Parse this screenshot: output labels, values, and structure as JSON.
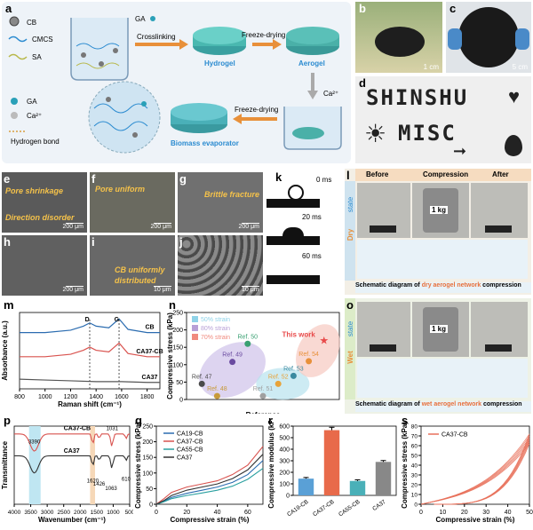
{
  "panels": {
    "a": {
      "label": "a",
      "legend": {
        "cb": "CB",
        "cmcs": "CMCS",
        "sa": "SA",
        "ga": "GA",
        "ca": "Ca²⁺",
        "hbond": "Hydrogen bond"
      },
      "ga_top": "GA",
      "steps": {
        "crosslinking": "Crosslinking",
        "freeze_drying_1": "Freeze-drying",
        "freeze_drying_2": "Freeze-drying",
        "ca_label": "Ca²⁺"
      },
      "products": {
        "hydrogel": "Hydrogel",
        "aerogel": "Aerogel",
        "biomass": "Biomass evaporator"
      }
    },
    "b": {
      "label": "b",
      "scale": "1 cm"
    },
    "c": {
      "label": "c",
      "scale": "5 cm"
    },
    "d": {
      "label": "d",
      "word1": "SHINSHU",
      "word2": "MISC"
    },
    "e": {
      "label": "e",
      "t1": "Pore shrinkage",
      "t2": "Direction disorder",
      "scale": "200 μm"
    },
    "f": {
      "label": "f",
      "t1": "Pore uniform",
      "scale": "200 μm"
    },
    "g": {
      "label": "g",
      "t1": "Brittle fracture",
      "scale": "200 μm"
    },
    "h": {
      "label": "h",
      "scale": "200 μm"
    },
    "i": {
      "label": "i",
      "t1": "CB uniformly",
      "t2": "distributed",
      "scale": "10 μm"
    },
    "j": {
      "label": "j",
      "scale": "10 μm"
    },
    "k": {
      "label": "k",
      "times": [
        "0 ms",
        "20 ms",
        "60 ms"
      ]
    },
    "l": {
      "label": "l",
      "headers": [
        "Before",
        "Compression",
        "After"
      ],
      "state_word": "Dry",
      "state_suffix": "state",
      "weight": "1 kg",
      "caption_pre": "Schematic diagram of ",
      "caption_em": "dry aerogel network",
      "caption_post": " compression"
    },
    "o": {
      "label": "o",
      "state_word": "Wet",
      "state_suffix": "state",
      "weight": "1 kg",
      "caption_pre": "Schematic diagram of ",
      "caption_em": "wet aerogel network",
      "caption_post": " compression"
    },
    "m": {
      "label": "m"
    },
    "n": {
      "label": "n"
    },
    "p": {
      "label": "p"
    },
    "q": {
      "label": "q"
    },
    "r": {
      "label": "r"
    },
    "s": {
      "label": "s"
    }
  },
  "chart_data": [
    {
      "id": "m",
      "type": "line",
      "xlabel": "Raman shift (cm⁻¹)",
      "ylabel": "Absorbance (a.u.)",
      "xlim": [
        800,
        1900
      ],
      "xticks": [
        800,
        1000,
        1200,
        1400,
        1600,
        1800
      ],
      "annotations": [
        "D",
        "G"
      ],
      "series": [
        {
          "name": "CB",
          "color": "#2b6cb0",
          "x": [
            800,
            1000,
            1200,
            1300,
            1350,
            1400,
            1500,
            1580,
            1650,
            1800,
            1900
          ],
          "y": [
            0.8,
            0.8,
            0.83,
            0.88,
            0.92,
            0.88,
            0.86,
            0.97,
            0.84,
            0.8,
            0.8
          ]
        },
        {
          "name": "CA37-CB",
          "color": "#d9534f",
          "x": [
            800,
            1000,
            1200,
            1300,
            1350,
            1400,
            1500,
            1580,
            1650,
            1800,
            1900
          ],
          "y": [
            0.5,
            0.5,
            0.53,
            0.58,
            0.62,
            0.58,
            0.56,
            0.67,
            0.54,
            0.5,
            0.5
          ]
        },
        {
          "name": "CA37",
          "color": "#555555",
          "x": [
            800,
            1000,
            1200,
            1400,
            1600,
            1800,
            1900
          ],
          "y": [
            0.22,
            0.21,
            0.2,
            0.19,
            0.19,
            0.18,
            0.18
          ]
        }
      ]
    },
    {
      "id": "n",
      "type": "scatter",
      "xlabel": "Reference",
      "ylabel": "Compressive stress (kPa)",
      "ylim": [
        0,
        250
      ],
      "yticks": [
        0,
        50,
        100,
        150,
        200,
        250
      ],
      "legend": [
        "50% strain",
        "80% strain",
        "70% strain"
      ],
      "legend_colors": [
        "#8fd3e8",
        "#b79fd6",
        "#f08a7e"
      ],
      "points": [
        {
          "name": "Ref. 47",
          "x": 1,
          "y": 45,
          "color": "#4a4a4a"
        },
        {
          "name": "Ref. 48",
          "x": 2,
          "y": 10,
          "color": "#c79a3a"
        },
        {
          "name": "Ref. 49",
          "x": 3,
          "y": 108,
          "color": "#6a4ba0"
        },
        {
          "name": "Ref. 50",
          "x": 4,
          "y": 160,
          "color": "#3aa072"
        },
        {
          "name": "Ref. 51",
          "x": 5,
          "y": 10,
          "color": "#a0a0a0"
        },
        {
          "name": "Ref. 52",
          "x": 6,
          "y": 45,
          "color": "#e8a33a"
        },
        {
          "name": "Ref. 53",
          "x": 7,
          "y": 68,
          "color": "#3a8aa0"
        },
        {
          "name": "Ref. 54",
          "x": 8,
          "y": 110,
          "color": "#e8903a"
        },
        {
          "name": "This work",
          "x": 9,
          "y": 170,
          "color": "#e84a4a",
          "marker": "star"
        }
      ]
    },
    {
      "id": "p",
      "type": "line",
      "xlabel": "Wavenumber (cm⁻¹)",
      "ylabel": "Transmittance",
      "xlim": [
        4000,
        500
      ],
      "xticks": [
        4000,
        3500,
        3000,
        2500,
        2000,
        1500,
        1000,
        500
      ],
      "annotations": [
        "3390",
        "1620",
        "1426",
        "1063",
        "1031",
        "610"
      ],
      "series": [
        {
          "name": "CA37-CB",
          "color": "#d9534f"
        },
        {
          "name": "CA37",
          "color": "#333333"
        }
      ]
    },
    {
      "id": "q",
      "type": "line",
      "xlabel": "Compressive strain (%)",
      "ylabel": "Compressive stress (kPa)",
      "xlim": [
        0,
        70
      ],
      "ylim": [
        0,
        250
      ],
      "xticks": [
        0,
        20,
        40,
        60
      ],
      "yticks": [
        0,
        50,
        100,
        150,
        200,
        250
      ],
      "series": [
        {
          "name": "CA19-CB",
          "color": "#2b6cb0",
          "x": [
            0,
            5,
            10,
            20,
            30,
            40,
            50,
            60,
            70
          ],
          "y": [
            0,
            10,
            22,
            35,
            45,
            55,
            70,
            95,
            140
          ]
        },
        {
          "name": "CA37-CB",
          "color": "#d9534f",
          "x": [
            0,
            5,
            10,
            20,
            30,
            40,
            50,
            60,
            70
          ],
          "y": [
            0,
            18,
            38,
            55,
            65,
            75,
            95,
            125,
            185
          ]
        },
        {
          "name": "CA55-CB",
          "color": "#2aa0a0",
          "x": [
            0,
            5,
            10,
            20,
            30,
            40,
            50,
            60,
            70
          ],
          "y": [
            0,
            8,
            18,
            28,
            36,
            45,
            58,
            80,
            115
          ]
        },
        {
          "name": "CA37",
          "color": "#333333",
          "x": [
            0,
            5,
            10,
            20,
            30,
            40,
            50,
            60,
            70
          ],
          "y": [
            0,
            12,
            28,
            45,
            55,
            65,
            82,
            110,
            160
          ]
        }
      ]
    },
    {
      "id": "r",
      "type": "bar",
      "ylabel": "Compressive modulus (kPa)",
      "ylim": [
        0,
        600
      ],
      "yticks": [
        0,
        100,
        200,
        300,
        400,
        500,
        600
      ],
      "categories": [
        "CA19-CB",
        "CA37-CB",
        "CA55-CB",
        "CA37"
      ],
      "values": [
        145,
        565,
        125,
        290
      ],
      "errors": [
        10,
        25,
        10,
        12
      ],
      "colors": [
        "#5aa0d6",
        "#e86a4a",
        "#4ab0b8",
        "#888888"
      ]
    },
    {
      "id": "s",
      "type": "line",
      "xlabel": "Compressive strain (%)",
      "ylabel": "Compressive stress (kPa)",
      "xlim": [
        0,
        50
      ],
      "ylim": [
        0,
        80
      ],
      "xticks": [
        0,
        10,
        20,
        30,
        40,
        50
      ],
      "yticks": [
        0,
        10,
        20,
        30,
        40,
        50,
        60,
        70,
        80
      ],
      "series": [
        {
          "name": "CA37-CB",
          "color": "#e8705a"
        }
      ]
    }
  ]
}
